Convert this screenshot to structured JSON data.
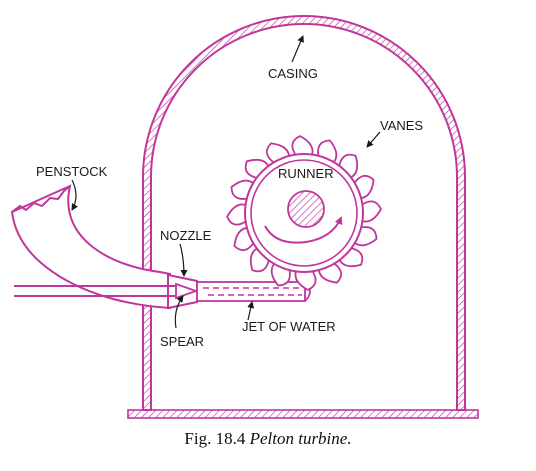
{
  "colors": {
    "line": "#c0369b",
    "text": "#1a1a1a",
    "background": "#ffffff"
  },
  "labels": {
    "casing": "CASING",
    "vanes": "VANES",
    "penstock": "PENSTOCK",
    "runner": "RUNNER",
    "nozzle": "NOZZLE",
    "jet": "JET OF WATER",
    "spear": "SPEAR"
  },
  "caption": {
    "number": "Fig. 18.4",
    "title": "Pelton turbine."
  }
}
